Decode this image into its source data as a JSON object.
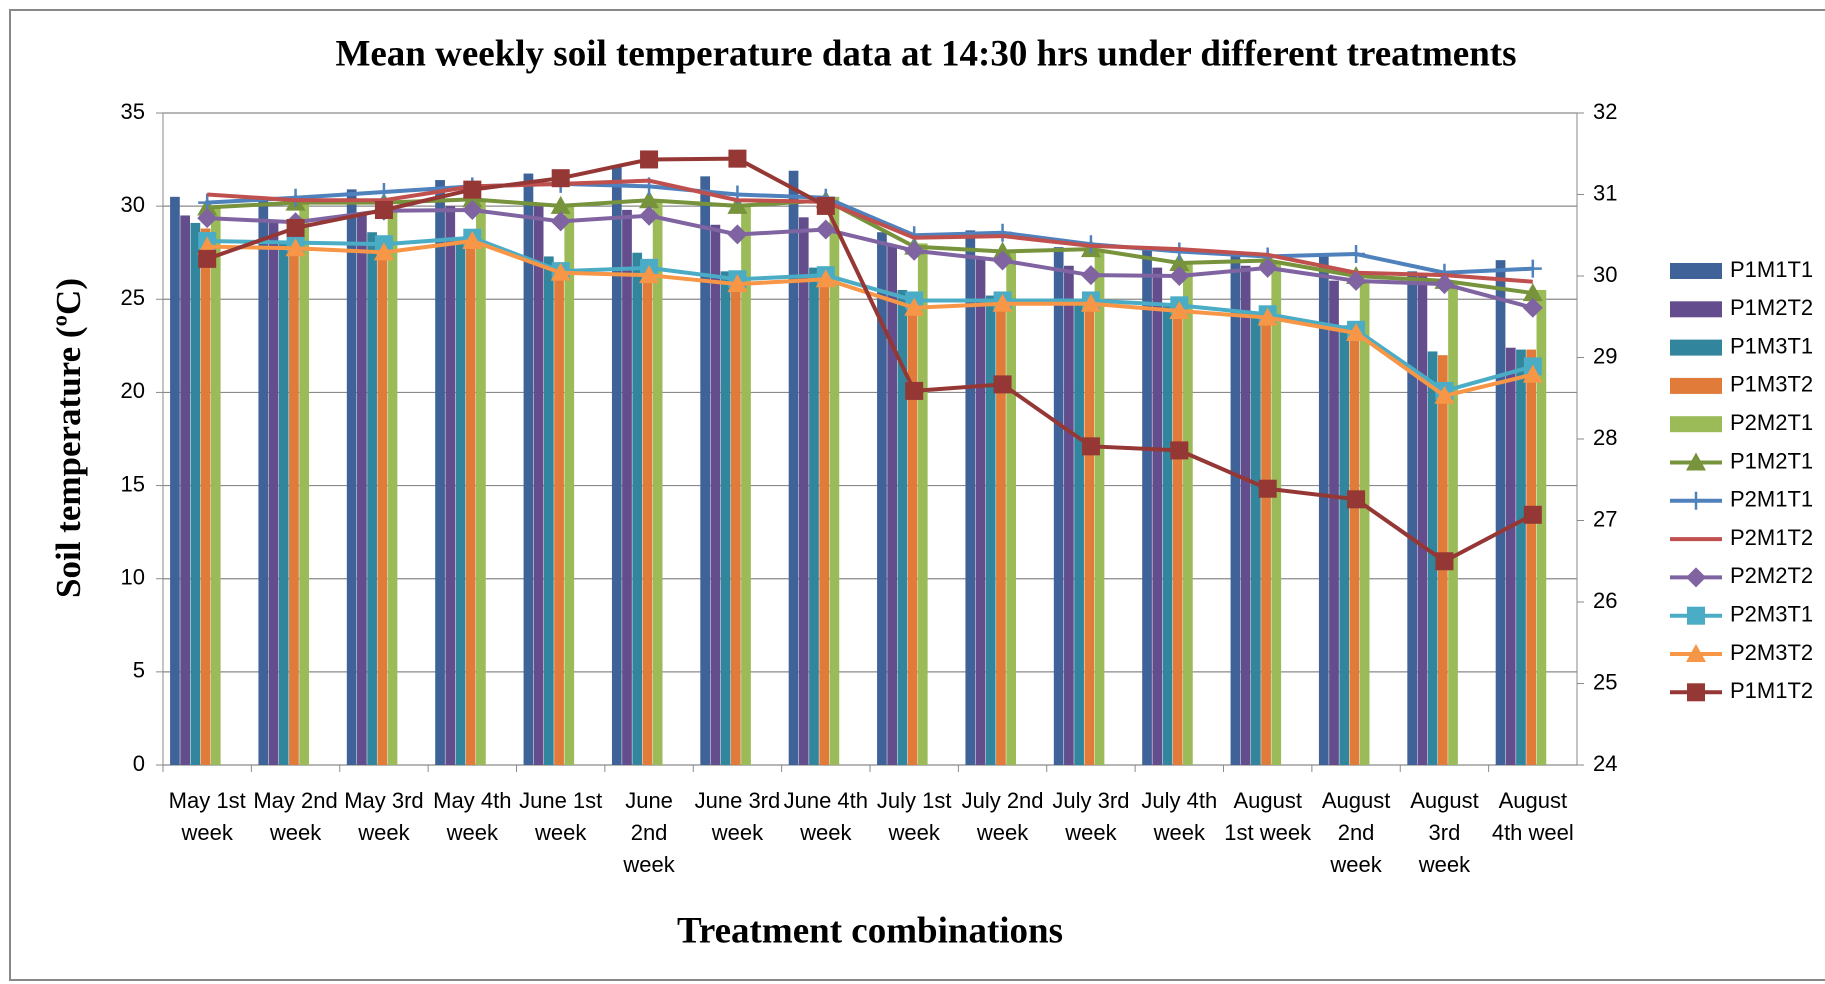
{
  "chart_data": {
    "type": "bar-line",
    "title": "Mean weekly soil temperature data at 14:30 hrs under different treatments",
    "x_label": "Treatment combinations",
    "y_label": "Soil temperature (ºC)",
    "categories": [
      "May 1st week",
      "May 2nd week",
      "May 3rd week",
      "May 4th week",
      "June 1st week",
      "June 2nd week",
      "June 3rd week",
      "June 4th week",
      "July 1st week",
      "July 2nd week",
      "July 3rd week",
      "July 4th week",
      "August 1st week",
      "August 2nd week",
      "August 3rd week",
      "August 4th weel"
    ],
    "ylim": [
      0,
      35
    ],
    "yticks": [
      0,
      5,
      10,
      15,
      20,
      25,
      30,
      35
    ],
    "y2lim": [
      24,
      32
    ],
    "y2ticks": [
      24,
      25,
      26,
      27,
      28,
      29,
      30,
      31,
      32
    ],
    "grid": true,
    "legend": "right",
    "series": [
      {
        "name": "P1M1T1",
        "type": "bar",
        "color": "#3f6398",
        "values": [
          30.5,
          30.4,
          30.9,
          31.4,
          31.75,
          32.1,
          31.6,
          31.9,
          28.6,
          28.7,
          27.8,
          27.8,
          27.4,
          27.3,
          26.5,
          27.1
        ]
      },
      {
        "name": "P1M2T2",
        "type": "bar",
        "color": "#634d8c",
        "values": [
          29.5,
          29.2,
          29.5,
          30.0,
          30.0,
          29.8,
          29.0,
          29.4,
          27.9,
          27.3,
          26.8,
          26.7,
          26.8,
          26.0,
          26.3,
          22.4
        ]
      },
      {
        "name": "P1M3T1",
        "type": "bar",
        "color": "#31859c",
        "values": [
          29.1,
          28.0,
          28.6,
          28.3,
          27.3,
          27.5,
          26.5,
          26.7,
          25.5,
          25.2,
          25.0,
          24.8,
          24.3,
          23.6,
          22.2,
          22.3
        ]
      },
      {
        "name": "P1M3T2",
        "type": "bar",
        "color": "#e07b39",
        "values": [
          28.8,
          27.8,
          27.5,
          28.2,
          26.7,
          27.0,
          26.0,
          26.3,
          24.5,
          24.7,
          24.8,
          24.5,
          24.0,
          23.3,
          22.0,
          22.3
        ]
      },
      {
        "name": "P2M2T1",
        "type": "bar",
        "color": "#9bbb59",
        "values": [
          30.0,
          30.2,
          30.0,
          30.3,
          30.0,
          30.3,
          30.0,
          30.5,
          28.0,
          27.6,
          27.7,
          27.0,
          27.0,
          26.0,
          26.0,
          25.5
        ]
      },
      {
        "name": "P1M2T1",
        "type": "line",
        "axis": "y2",
        "marker": "triangle",
        "color": "#77933c",
        "values": [
          30.84,
          30.9,
          30.9,
          30.94,
          30.86,
          30.93,
          30.86,
          30.93,
          30.36,
          30.3,
          30.33,
          30.16,
          30.19,
          30.0,
          29.94,
          29.79
        ]
      },
      {
        "name": "P2M1T1",
        "type": "line",
        "axis": "y2",
        "marker": "plus",
        "color": "#4f81bd",
        "values": [
          30.9,
          30.96,
          31.03,
          31.1,
          31.13,
          31.1,
          31.0,
          30.96,
          30.5,
          30.53,
          30.39,
          30.3,
          30.24,
          30.27,
          30.04,
          30.09
        ]
      },
      {
        "name": "P2M1T2",
        "type": "line",
        "axis": "y2",
        "marker": "none",
        "color": "#c0504d",
        "values": [
          31.0,
          30.93,
          30.93,
          31.1,
          31.13,
          31.17,
          30.93,
          30.91,
          30.47,
          30.49,
          30.37,
          30.33,
          30.26,
          30.04,
          30.01,
          29.93
        ]
      },
      {
        "name": "P2M2T2",
        "type": "line",
        "axis": "y2",
        "marker": "diamond",
        "color": "#8064a2",
        "values": [
          30.71,
          30.66,
          30.8,
          30.81,
          30.67,
          30.74,
          30.51,
          30.57,
          30.31,
          30.19,
          30.01,
          30.0,
          30.1,
          29.94,
          29.9,
          29.61
        ]
      },
      {
        "name": "P2M3T1",
        "type": "line",
        "axis": "y2",
        "marker": "square",
        "color": "#4bacc6",
        "values": [
          30.43,
          30.41,
          30.39,
          30.47,
          30.06,
          30.1,
          29.96,
          30.01,
          29.7,
          29.7,
          29.7,
          29.64,
          29.53,
          29.34,
          28.59,
          28.89
        ]
      },
      {
        "name": "P2M3T2",
        "type": "line",
        "axis": "y2",
        "marker": "triangle",
        "color": "#f79646",
        "values": [
          30.36,
          30.34,
          30.29,
          30.43,
          30.04,
          30.01,
          29.9,
          29.96,
          29.61,
          29.66,
          29.66,
          29.57,
          29.49,
          29.3,
          28.53,
          28.79
        ]
      },
      {
        "name": "P1M1T2",
        "type": "line",
        "axis": "y2",
        "marker": "square",
        "color": "#953735",
        "values": [
          30.21,
          30.59,
          30.81,
          31.06,
          31.2,
          31.43,
          31.44,
          30.86,
          28.59,
          28.67,
          27.91,
          27.86,
          27.39,
          27.26,
          26.5,
          27.07
        ]
      }
    ]
  }
}
